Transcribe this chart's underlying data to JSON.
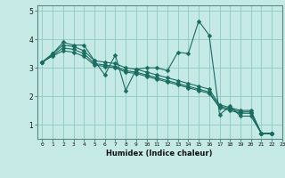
{
  "title": "",
  "xlabel": "Humidex (Indice chaleur)",
  "bg_color": "#c5eae6",
  "grid_color": "#8ec8c0",
  "line_color": "#1a6b60",
  "marker": "D",
  "marker_size": 2.5,
  "linewidth": 0.8,
  "xlim": [
    -0.5,
    23
  ],
  "ylim": [
    0.5,
    5.2
  ],
  "yticks": [
    1,
    2,
    3,
    4,
    5
  ],
  "xticks": [
    0,
    1,
    2,
    3,
    4,
    5,
    6,
    7,
    8,
    9,
    10,
    11,
    12,
    13,
    14,
    15,
    16,
    17,
    18,
    19,
    20,
    21,
    22,
    23
  ],
  "series": [
    [
      3.2,
      3.5,
      3.9,
      3.8,
      3.8,
      3.25,
      2.75,
      3.45,
      2.2,
      2.95,
      3.0,
      3.0,
      2.9,
      3.55,
      3.5,
      4.65,
      4.15,
      1.35,
      1.65,
      1.3,
      1.3,
      0.7,
      0.68
    ],
    [
      3.2,
      3.5,
      3.8,
      3.75,
      3.6,
      3.25,
      3.2,
      3.15,
      3.0,
      2.95,
      2.85,
      2.75,
      2.65,
      2.55,
      2.45,
      2.35,
      2.25,
      1.7,
      1.6,
      1.5,
      1.5,
      0.7,
      0.7
    ],
    [
      3.2,
      3.45,
      3.7,
      3.65,
      3.5,
      3.15,
      3.1,
      3.05,
      2.9,
      2.85,
      2.75,
      2.65,
      2.55,
      2.45,
      2.35,
      2.25,
      2.15,
      1.65,
      1.55,
      1.45,
      1.45,
      0.7,
      0.7
    ],
    [
      3.2,
      3.42,
      3.6,
      3.55,
      3.4,
      3.1,
      3.05,
      3.0,
      2.85,
      2.8,
      2.7,
      2.6,
      2.5,
      2.4,
      2.3,
      2.2,
      2.1,
      1.6,
      1.5,
      1.4,
      1.4,
      0.68,
      0.68
    ]
  ]
}
